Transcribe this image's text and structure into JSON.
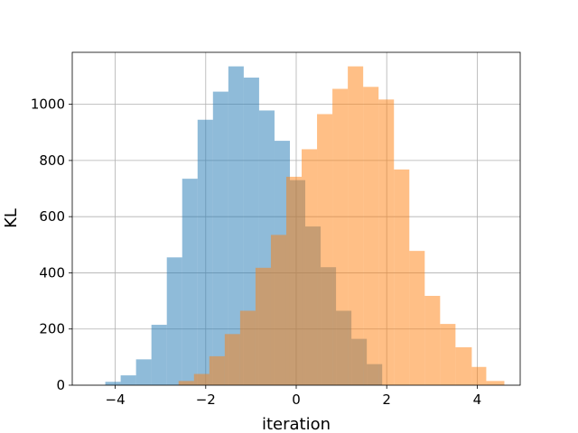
{
  "chart_data": {
    "type": "bar",
    "subtype": "overlapping-histogram",
    "title": "",
    "xlabel": "iteration",
    "ylabel": "KL",
    "xlim": [
      -4.95,
      4.95
    ],
    "ylim": [
      0,
      1185
    ],
    "x_ticks": [
      -4,
      -2,
      0,
      2,
      4
    ],
    "x_tick_labels": [
      "−4",
      "−2",
      "0",
      "2",
      "4"
    ],
    "y_ticks": [
      0,
      200,
      400,
      600,
      800,
      1000
    ],
    "y_tick_labels": [
      "0",
      "200",
      "400",
      "600",
      "800",
      "1000"
    ],
    "grid": true,
    "series": [
      {
        "color": "#1f77b4",
        "opacity": 0.5,
        "bin_edges": [
          -4.22,
          -3.88,
          -3.54,
          -3.2,
          -2.86,
          -2.52,
          -2.18,
          -1.84,
          -1.5,
          -1.16,
          -0.82,
          -0.48,
          -0.14,
          0.2,
          0.54,
          0.88,
          1.22,
          1.56,
          1.9
        ],
        "counts": [
          12,
          35,
          92,
          215,
          455,
          735,
          945,
          1045,
          1135,
          1095,
          978,
          870,
          730,
          565,
          420,
          265,
          165,
          75
        ]
      },
      {
        "color": "#ff7f0e",
        "opacity": 0.5,
        "bin_edges": [
          -2.6,
          -2.26,
          -1.92,
          -1.58,
          -1.24,
          -0.9,
          -0.56,
          -0.22,
          0.12,
          0.46,
          0.8,
          1.14,
          1.48,
          1.82,
          2.16,
          2.5,
          2.84,
          3.18,
          3.52,
          3.88,
          4.2,
          4.6
        ],
        "counts": [
          15,
          40,
          103,
          182,
          265,
          418,
          535,
          742,
          840,
          965,
          1055,
          1135,
          1062,
          1017,
          768,
          478,
          318,
          218,
          135,
          65,
          15
        ]
      }
    ]
  }
}
